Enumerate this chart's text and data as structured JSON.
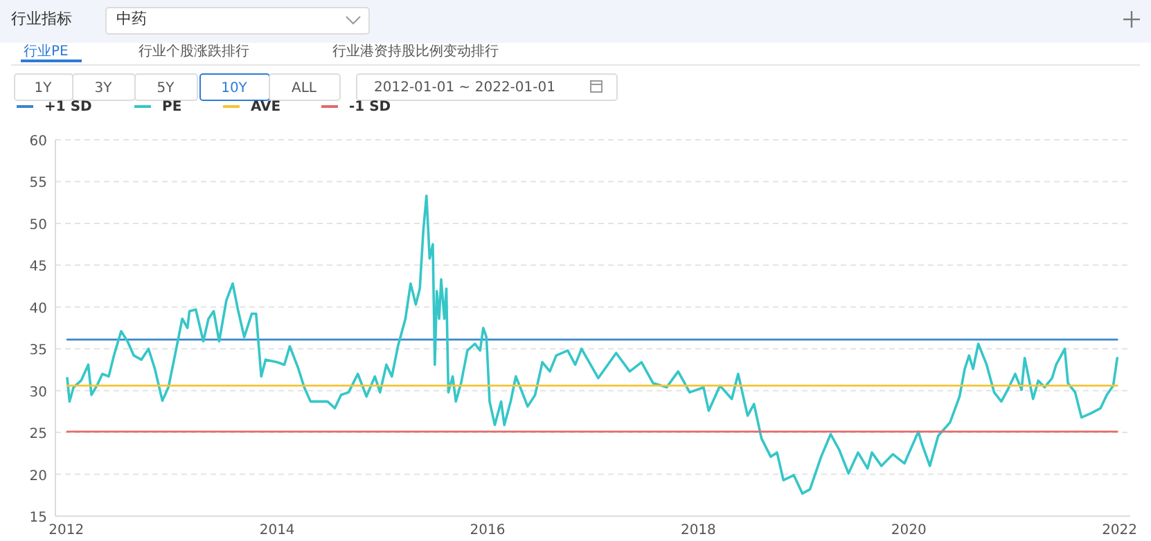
{
  "chart_data": {
    "type": "line",
    "annotations": [
      "行业指标",
      "中药",
      "行业PE",
      "行业个股涨跌排行",
      "行业港资持股比例变动排行",
      "1Y",
      "3Y",
      "5Y",
      "10Y",
      "ALL",
      "2012-01-01 ~ 2022-01-01"
    ],
    "xlim": [
      "2011-11-24",
      "2022-02-07"
    ],
    "xticks": [
      {
        "value": "2012-01-01",
        "label": "2012"
      },
      {
        "value": "2014-01-01",
        "label": "2014"
      },
      {
        "value": "2016-01-01",
        "label": "2016"
      },
      {
        "value": "2018-01-01",
        "label": "2018"
      },
      {
        "value": "2020-01-01",
        "label": "2020"
      },
      {
        "value": "2022-01-01",
        "label": "2022"
      }
    ],
    "ylim": [
      15,
      60
    ],
    "yticks": [
      15,
      20,
      25,
      30,
      35,
      40,
      45,
      50,
      55,
      60
    ],
    "grid": "y",
    "legend": "top left",
    "series": [
      {
        "name": "+1 SD",
        "color": "#3a86c8",
        "x": [
          "2012-01-04",
          "2021-12-24"
        ],
        "values": [
          36.1,
          36.1
        ]
      },
      {
        "name": "PE",
        "color": "#36c6c8",
        "x": [
          "2012-01-04",
          "2012-01-12",
          "2012-01-26",
          "2012-02-21",
          "2012-03-17",
          "2012-03-28",
          "2012-04-16",
          "2012-05-05",
          "2012-05-27",
          "2012-06-14",
          "2012-07-09",
          "2012-07-31",
          "2012-08-22",
          "2012-09-17",
          "2012-10-12",
          "2012-11-03",
          "2012-11-29",
          "2012-12-20",
          "2013-01-15",
          "2013-02-06",
          "2013-02-24",
          "2013-03-03",
          "2013-03-25",
          "2013-04-20",
          "2013-05-08",
          "2013-05-26",
          "2013-06-14",
          "2013-07-09",
          "2013-07-31",
          "2013-08-18",
          "2013-09-09",
          "2013-10-05",
          "2013-10-20",
          "2013-11-07",
          "2013-11-22",
          "2014-01-01",
          "2014-01-26",
          "2014-02-14",
          "2014-03-14",
          "2014-04-05",
          "2014-04-27",
          "2014-05-23",
          "2014-06-25",
          "2014-07-20",
          "2014-08-11",
          "2014-09-06",
          "2014-10-08",
          "2014-11-07",
          "2014-12-06",
          "2014-12-24",
          "2015-01-15",
          "2015-02-03",
          "2015-02-24",
          "2015-03-22",
          "2015-04-09",
          "2015-04-27",
          "2015-05-11",
          "2015-05-23",
          "2015-06-03",
          "2015-06-14",
          "2015-06-25",
          "2015-07-02",
          "2015-07-09",
          "2015-07-17",
          "2015-07-24",
          "2015-08-04",
          "2015-08-11",
          "2015-08-18",
          "2015-09-02",
          "2015-09-13",
          "2015-10-01",
          "2015-10-23",
          "2015-11-18",
          "2015-12-06",
          "2015-12-17",
          "2015-12-28",
          "2016-01-08",
          "2016-01-26",
          "2016-02-17",
          "2016-02-28",
          "2016-03-21",
          "2016-04-08",
          "2016-04-30",
          "2016-05-19",
          "2016-06-14",
          "2016-07-09",
          "2016-08-04",
          "2016-08-26",
          "2016-10-05",
          "2016-10-31",
          "2016-11-22",
          "2017-01-19",
          "2017-03-22",
          "2017-05-08",
          "2017-06-18",
          "2017-07-28",
          "2017-09-13",
          "2017-10-23",
          "2017-12-02",
          "2018-01-19",
          "2018-02-06",
          "2018-03-17",
          "2018-04-27",
          "2018-05-19",
          "2018-06-21",
          "2018-07-13",
          "2018-08-08",
          "2018-09-09",
          "2018-10-01",
          "2018-10-23",
          "2018-11-28",
          "2018-12-28",
          "2019-01-23",
          "2019-03-03",
          "2019-04-05",
          "2019-05-05",
          "2019-06-06",
          "2019-07-09",
          "2019-08-11",
          "2019-08-26",
          "2019-09-28",
          "2019-11-07",
          "2019-12-17",
          "2020-02-03",
          "2020-02-17",
          "2020-03-14",
          "2020-04-12",
          "2020-05-23",
          "2020-06-25",
          "2020-07-13",
          "2020-07-28",
          "2020-08-11",
          "2020-08-29",
          "2020-09-27",
          "2020-10-23",
          "2020-11-17",
          "2020-12-09",
          "2021-01-04",
          "2021-01-26",
          "2021-02-06",
          "2021-03-07",
          "2021-03-25",
          "2021-04-16",
          "2021-05-12",
          "2021-05-26",
          "2021-06-25",
          "2021-07-06",
          "2021-07-31",
          "2021-08-22",
          "2021-09-24",
          "2021-10-27",
          "2021-11-18",
          "2021-12-10",
          "2021-12-24"
        ],
        "values": [
          31.5,
          28.7,
          30.4,
          31.2,
          33.1,
          29.5,
          30.6,
          32.0,
          31.7,
          34.2,
          37.1,
          35.9,
          34.2,
          33.7,
          35.0,
          32.6,
          28.8,
          30.4,
          34.8,
          38.6,
          37.5,
          39.5,
          39.7,
          35.9,
          38.6,
          39.5,
          35.9,
          40.8,
          42.8,
          39.7,
          36.4,
          39.2,
          39.2,
          31.7,
          33.7,
          33.4,
          33.1,
          35.3,
          32.8,
          30.4,
          28.7,
          28.7,
          28.7,
          27.9,
          29.5,
          29.8,
          32.0,
          29.3,
          31.7,
          29.8,
          33.1,
          31.7,
          35.3,
          38.6,
          42.8,
          40.3,
          42.2,
          49.1,
          53.3,
          45.8,
          47.5,
          33.1,
          41.9,
          38.6,
          43.3,
          38.6,
          42.2,
          29.8,
          31.7,
          28.7,
          30.9,
          34.8,
          35.6,
          34.8,
          37.5,
          36.4,
          28.7,
          25.9,
          28.7,
          25.9,
          28.7,
          31.7,
          29.8,
          28.1,
          29.5,
          33.4,
          32.3,
          34.2,
          34.8,
          33.1,
          35.0,
          31.5,
          34.5,
          32.3,
          33.4,
          30.9,
          30.4,
          32.3,
          29.8,
          30.4,
          27.6,
          30.6,
          29.0,
          32.0,
          27.0,
          28.4,
          24.3,
          22.1,
          22.6,
          19.3,
          19.9,
          17.7,
          18.2,
          22.1,
          24.8,
          22.9,
          20.1,
          22.6,
          20.7,
          22.6,
          21.0,
          22.4,
          21.3,
          25.1,
          23.5,
          21.0,
          24.6,
          26.2,
          29.3,
          32.6,
          34.2,
          32.6,
          35.6,
          33.1,
          29.8,
          28.7,
          30.1,
          32.0,
          30.1,
          33.9,
          29.0,
          31.2,
          30.4,
          31.5,
          33.1,
          35.0,
          30.9,
          29.8,
          26.8,
          27.3,
          27.9,
          29.5,
          30.6,
          33.9
        ]
      },
      {
        "name": "AVE",
        "color": "#f4c534",
        "x": [
          "2012-01-04",
          "2021-12-24"
        ],
        "values": [
          30.6,
          30.6
        ]
      },
      {
        "name": "-1 SD",
        "color": "#e46a6a",
        "x": [
          "2012-01-04",
          "2021-12-24"
        ],
        "values": [
          25.1,
          25.1
        ]
      }
    ]
  }
}
